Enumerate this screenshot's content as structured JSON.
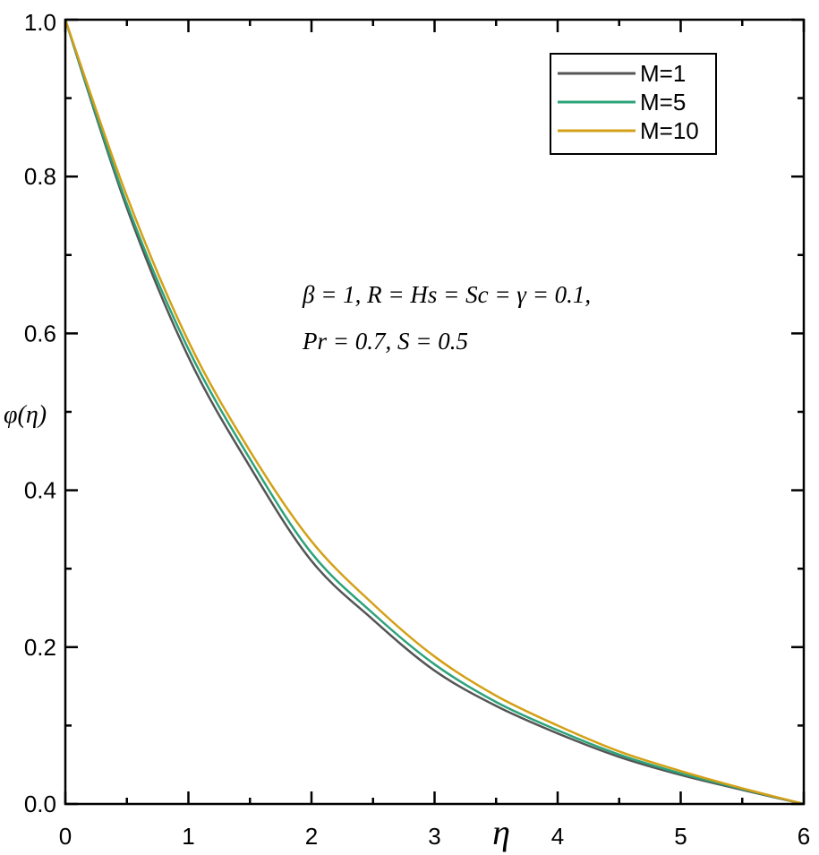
{
  "chart_data": {
    "type": "line",
    "title": "",
    "xlabel": "η",
    "ylabel": "φ(η)",
    "xlim": [
      0,
      6
    ],
    "ylim": [
      0,
      1
    ],
    "xticks": [
      0,
      1,
      2,
      3,
      4,
      5,
      6
    ],
    "yticks": [
      0.0,
      0.2,
      0.4,
      0.6,
      0.8,
      1.0
    ],
    "ytick_labels": [
      "0.0",
      "0.2",
      "0.4",
      "0.6",
      "0.8",
      "1.0"
    ],
    "xtick_labels": [
      "0",
      "1",
      "2",
      "3",
      "4",
      "5",
      "6"
    ],
    "grid": false,
    "legend_position": "top-right",
    "x": [
      0,
      0.5,
      1,
      1.5,
      2,
      2.5,
      3,
      3.5,
      4,
      4.5,
      5,
      5.5,
      6
    ],
    "series": [
      {
        "name": "M=1",
        "color": "#555555",
        "values": [
          1.0,
          0.76,
          0.57,
          0.43,
          0.31,
          0.235,
          0.17,
          0.125,
          0.09,
          0.06,
          0.037,
          0.018,
          0.0
        ]
      },
      {
        "name": "M=5",
        "color": "#2ca37a",
        "values": [
          1.0,
          0.765,
          0.58,
          0.44,
          0.32,
          0.243,
          0.178,
          0.13,
          0.094,
          0.063,
          0.039,
          0.019,
          0.0
        ]
      },
      {
        "name": "M=10",
        "color": "#d4a017",
        "values": [
          1.0,
          0.775,
          0.59,
          0.45,
          0.335,
          0.255,
          0.188,
          0.138,
          0.1,
          0.067,
          0.042,
          0.02,
          0.0
        ]
      }
    ],
    "annotations": [
      "β = 1, R = Hs = Sc = γ = 0.1,",
      "Pr = 0.7, S = 0.5"
    ]
  }
}
